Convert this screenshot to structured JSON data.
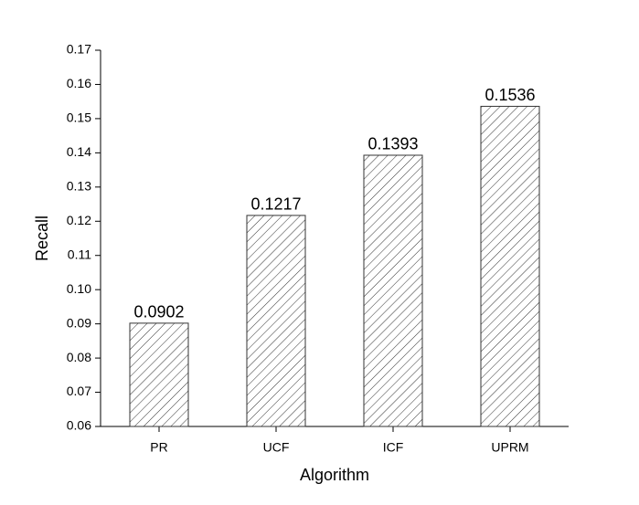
{
  "chart_data": {
    "type": "bar",
    "x_label": "Algorithm",
    "y_label": "Recall",
    "categories": [
      "PR",
      "UCF",
      "ICF",
      "UPRM"
    ],
    "values": [
      0.0902,
      0.1217,
      0.1393,
      0.1536
    ],
    "color": "#333333",
    "ylim": [
      0.06,
      0.17
    ],
    "yticks": [
      0.06,
      0.07,
      0.08,
      0.09,
      {
        "value": 0.1,
        "label": "0.10"
      },
      0.11,
      0.12,
      0.13,
      0.14,
      0.15,
      0.16,
      0.17
    ],
    "grid": false
  }
}
